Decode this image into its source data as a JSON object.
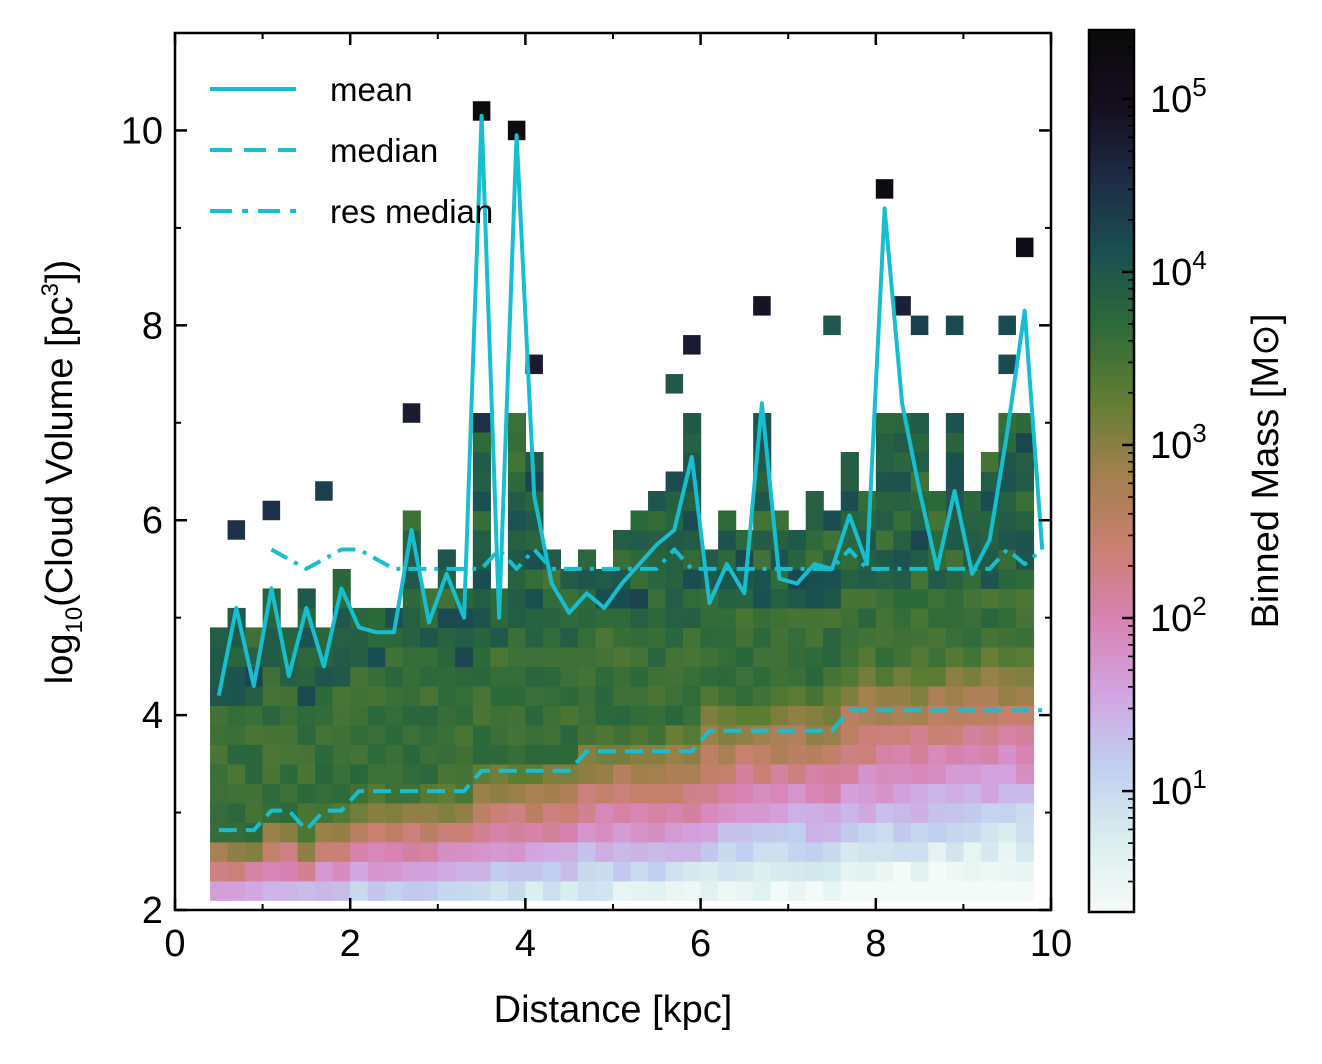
{
  "chart_data": {
    "type": "heatmap",
    "xlabel": "Distance [kpc]",
    "ylabel_parts": {
      "main": "log",
      "sub": "10",
      "mid": "(Cloud Volume [pc",
      "sup": "3",
      "end": "])"
    },
    "xlim": [
      0,
      10
    ],
    "ylim": [
      2,
      11
    ],
    "xticks": [
      0,
      2,
      4,
      6,
      8,
      10
    ],
    "yticks": [
      2,
      4,
      6,
      8,
      10
    ],
    "colorbar": {
      "label": "Binned Mass [M⊙]",
      "scale": "log",
      "range": [
        2,
        250000
      ],
      "tick_base": "10",
      "tick_exponents": [
        "1",
        "2",
        "3",
        "4",
        "5"
      ],
      "colormap": [
        "#f6fbf8",
        "#d9eeee",
        "#c0cff0",
        "#d3a3e0",
        "#d882b0",
        "#c98070",
        "#a0804c",
        "#5e7d32",
        "#2d6a3a",
        "#1a4f52",
        "#1d2a45",
        "#150e1e",
        "#0a0a0a"
      ]
    },
    "heatmap": {
      "x_range": [
        0.4,
        9.8
      ],
      "bin_width": 0.2,
      "y_bin": 0.2,
      "floor_y": 2.1,
      "spike_cells": [
        {
          "x": 0.6,
          "y": 5.8,
          "m": 30000
        },
        {
          "x": 1.0,
          "y": 6.0,
          "m": 30000
        },
        {
          "x": 1.6,
          "y": 6.2,
          "m": 20000
        },
        {
          "x": 2.6,
          "y": 7.0,
          "m": 60000
        },
        {
          "x": 3.4,
          "y": 10.1,
          "m": 200000
        },
        {
          "x": 3.8,
          "y": 9.9,
          "m": 200000
        },
        {
          "x": 4.0,
          "y": 7.5,
          "m": 60000
        },
        {
          "x": 3.4,
          "y": 6.9,
          "m": 30000
        },
        {
          "x": 5.8,
          "y": 7.7,
          "m": 60000
        },
        {
          "x": 6.6,
          "y": 8.1,
          "m": 80000
        },
        {
          "x": 8.0,
          "y": 9.3,
          "m": 200000
        },
        {
          "x": 8.2,
          "y": 8.1,
          "m": 50000
        },
        {
          "x": 9.6,
          "y": 8.7,
          "m": 150000
        },
        {
          "x": 5.6,
          "y": 7.3,
          "m": 10000
        },
        {
          "x": 7.4,
          "y": 7.9,
          "m": 10000
        },
        {
          "x": 8.4,
          "y": 7.9,
          "m": 20000
        },
        {
          "x": 8.8,
          "y": 7.9,
          "m": 15000
        },
        {
          "x": 9.4,
          "y": 7.9,
          "m": 15000
        },
        {
          "x": 9.4,
          "y": 7.5,
          "m": 15000
        }
      ]
    },
    "series": [
      {
        "name": "mean",
        "style": "solid",
        "x": [
          0.5,
          0.7,
          0.9,
          1.1,
          1.3,
          1.5,
          1.7,
          1.9,
          2.1,
          2.3,
          2.5,
          2.7,
          2.9,
          3.1,
          3.3,
          3.5,
          3.7,
          3.9,
          4.1,
          4.3,
          4.5,
          4.7,
          4.9,
          5.1,
          5.3,
          5.5,
          5.7,
          5.9,
          6.1,
          6.3,
          6.5,
          6.7,
          6.9,
          7.1,
          7.3,
          7.5,
          7.7,
          7.9,
          8.1,
          8.3,
          8.5,
          8.7,
          8.9,
          9.1,
          9.3,
          9.5,
          9.7,
          9.9
        ],
        "y": [
          4.2,
          5.1,
          4.3,
          5.3,
          4.4,
          5.1,
          4.5,
          5.3,
          4.9,
          4.85,
          4.85,
          5.9,
          4.95,
          5.45,
          5.0,
          10.15,
          5.0,
          9.95,
          6.25,
          5.35,
          5.05,
          5.25,
          5.1,
          5.35,
          5.55,
          5.75,
          5.9,
          6.65,
          5.15,
          5.55,
          5.25,
          7.2,
          5.4,
          5.35,
          5.55,
          5.5,
          6.05,
          5.55,
          9.2,
          7.2,
          6.3,
          5.5,
          6.3,
          5.45,
          5.8,
          6.9,
          8.15,
          5.7
        ]
      },
      {
        "name": "median",
        "style": "dashed",
        "x": [
          0.5,
          0.9,
          1.1,
          1.3,
          1.5,
          1.7,
          1.9,
          2.1,
          2.3,
          2.5,
          2.7,
          2.9,
          3.1,
          3.3,
          3.5,
          3.7,
          3.9,
          4.1,
          4.3,
          4.5,
          4.7,
          4.9,
          5.1,
          5.3,
          5.5,
          5.7,
          5.9,
          6.1,
          6.3,
          6.5,
          6.7,
          6.9,
          7.1,
          7.3,
          7.5,
          7.7,
          7.9,
          8.1,
          8.3,
          8.5,
          8.7,
          8.9,
          9.1,
          9.3,
          9.5,
          9.7,
          9.9
        ],
        "y": [
          2.82,
          2.82,
          3.02,
          3.02,
          2.82,
          3.02,
          3.02,
          3.22,
          3.22,
          3.22,
          3.22,
          3.22,
          3.22,
          3.22,
          3.43,
          3.43,
          3.43,
          3.43,
          3.43,
          3.43,
          3.63,
          3.63,
          3.63,
          3.63,
          3.63,
          3.63,
          3.63,
          3.84,
          3.84,
          3.84,
          3.84,
          3.84,
          3.84,
          3.84,
          3.84,
          4.05,
          4.05,
          4.05,
          4.05,
          4.05,
          4.05,
          4.05,
          4.05,
          4.05,
          4.05,
          4.05,
          4.05
        ]
      },
      {
        "name": "res median",
        "style": "dashdot",
        "x": [
          1.1,
          1.3,
          1.5,
          1.7,
          1.9,
          2.1,
          2.3,
          2.5,
          2.7,
          2.9,
          3.1,
          3.3,
          3.5,
          3.7,
          3.9,
          4.1,
          4.3,
          4.5,
          4.7,
          4.9,
          5.1,
          5.3,
          5.5,
          5.7,
          5.9,
          6.1,
          6.3,
          6.5,
          6.7,
          6.9,
          7.1,
          7.3,
          7.5,
          7.7,
          7.9,
          8.1,
          8.3,
          8.5,
          8.7,
          8.9,
          9.1,
          9.3,
          9.5,
          9.7,
          9.9
        ],
        "y": [
          5.7,
          5.6,
          5.5,
          5.6,
          5.7,
          5.7,
          5.6,
          5.5,
          5.5,
          5.5,
          5.5,
          5.5,
          5.5,
          5.7,
          5.5,
          5.7,
          5.5,
          5.5,
          5.5,
          5.5,
          5.5,
          5.5,
          5.5,
          5.7,
          5.5,
          5.5,
          5.5,
          5.5,
          5.5,
          5.5,
          5.5,
          5.5,
          5.5,
          5.7,
          5.5,
          5.5,
          5.5,
          5.5,
          5.5,
          5.5,
          5.5,
          5.5,
          5.7,
          5.55,
          5.7
        ]
      }
    ],
    "line_color": "#17becf",
    "legend": {
      "placement": "upper-left",
      "entries": [
        "mean",
        "median",
        "res median"
      ]
    }
  }
}
